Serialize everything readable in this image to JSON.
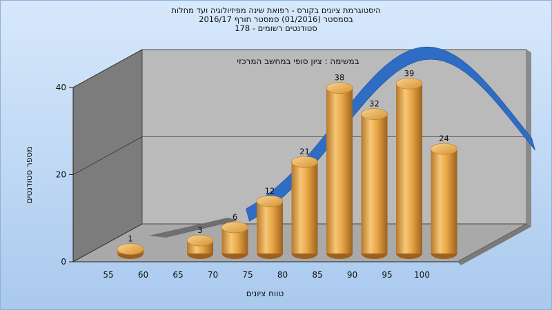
{
  "titles": {
    "line1": "היסטוגרמת ציונים בקורס - רפואת שינה מפיזיולוגיה ועד מחלות",
    "line2": "בסמסטר (01/2016) סמסטר חורף 2016/17",
    "line3": "סטודנטים רשומים - 178"
  },
  "chart_data": {
    "type": "bar",
    "subtitle": "במשימה : ציון סופי במחשב המרכזי",
    "xlabel": "טווח ציונים",
    "ylabel": "מספר סטודנטים",
    "categories": [
      "55",
      "60",
      "65",
      "70",
      "75",
      "80",
      "85",
      "90",
      "95",
      "100"
    ],
    "values": [
      1,
      0,
      3,
      6,
      12,
      21,
      38,
      32,
      39,
      24
    ],
    "yticks": [
      "0",
      "20",
      "40"
    ],
    "ylim": [
      0,
      40
    ],
    "grid": true,
    "curve": "normal-distribution",
    "colors": {
      "bar": "#e7a543",
      "curve": "#2f6cc4",
      "wall": "#7d7d7d",
      "floor": "#a8a8a8",
      "back": "#b9b9b9"
    }
  }
}
